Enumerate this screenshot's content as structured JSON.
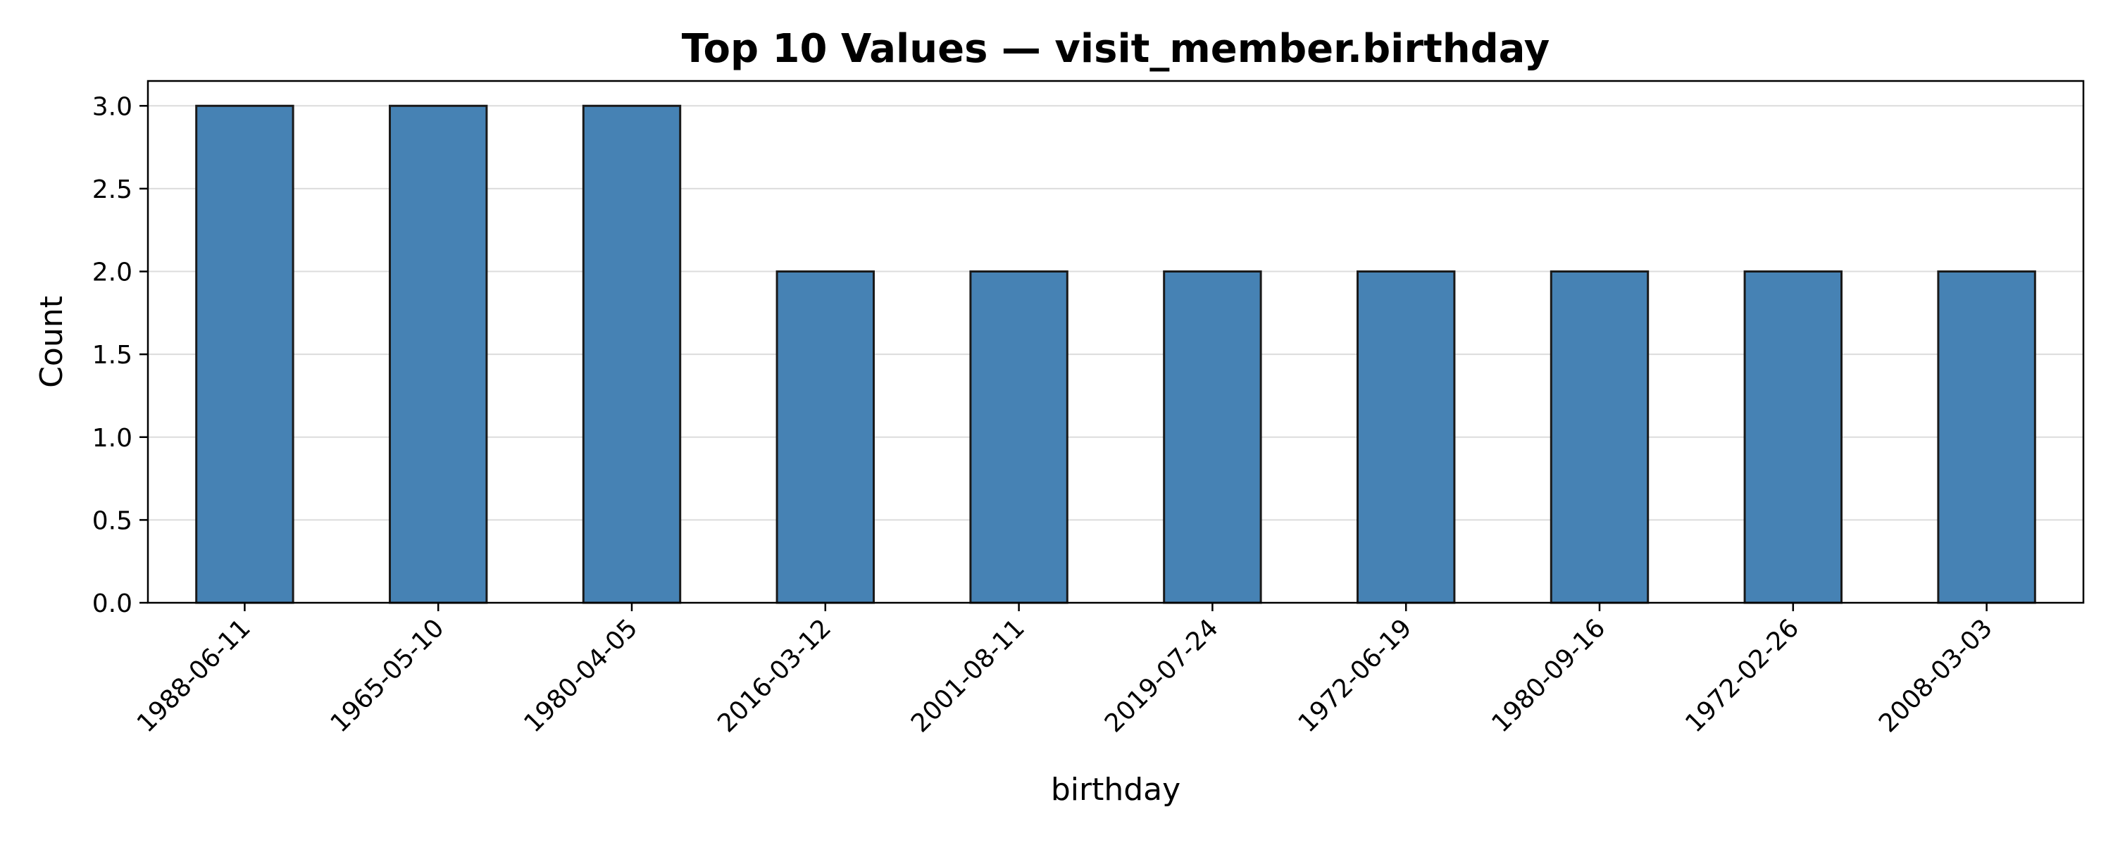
{
  "chart_data": {
    "type": "bar",
    "title": "Top 10 Values — visit_member.birthday",
    "xlabel": "birthday",
    "ylabel": "Count",
    "categories": [
      "1988-06-11",
      "1965-05-10",
      "1980-04-05",
      "2016-03-12",
      "2001-08-11",
      "2019-07-24",
      "1972-06-19",
      "1980-09-16",
      "1972-02-26",
      "2008-03-03"
    ],
    "values": [
      3,
      3,
      3,
      2,
      2,
      2,
      2,
      2,
      2,
      2
    ],
    "ylim": [
      0,
      3.15
    ],
    "yticks": [
      "0.0",
      "0.5",
      "1.0",
      "1.5",
      "2.0",
      "2.5",
      "3.0"
    ],
    "grid": "y",
    "bar_color": "#4682b4",
    "edge_color": "#1a1a1a"
  }
}
